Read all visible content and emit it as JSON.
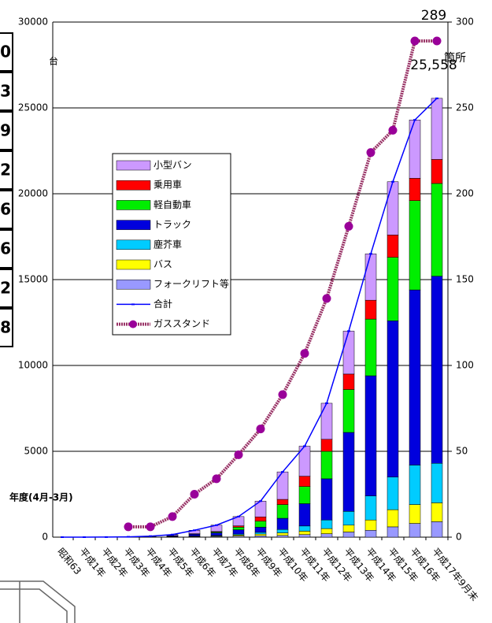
{
  "chart_data": {
    "type": "bar",
    "stacked": true,
    "y_label": "台",
    "y2_label": "箇所",
    "x_note": "年度(4月-3月)",
    "categories": [
      "昭和63",
      "平成1年",
      "平成2年",
      "平成3年",
      "平成4年",
      "平成5年",
      "平成6年",
      "平成7年",
      "平成8年",
      "平成9年",
      "平成10年",
      "平成11年",
      "平成12年",
      "平成13年",
      "平成14年",
      "平成15年",
      "平成16年",
      "平成17年9月末"
    ],
    "ylim": [
      0,
      30000
    ],
    "yticks": [
      0,
      5000,
      10000,
      15000,
      20000,
      25000,
      30000
    ],
    "y2lim": [
      0,
      300
    ],
    "y2ticks": [
      0,
      50,
      100,
      150,
      200,
      250,
      300
    ],
    "grid": true,
    "series": [
      {
        "name": "小型バン",
        "color": "#cc99ff",
        "values": [
          0,
          0,
          2,
          4,
          18,
          55,
          200,
          370,
          540,
          920,
          1600,
          1750,
          2100,
          2500,
          2700,
          3100,
          3400,
          3558
        ]
      },
      {
        "name": "乗用車",
        "color": "#ff0000",
        "values": [
          0,
          0,
          0,
          1,
          2,
          5,
          10,
          30,
          80,
          250,
          300,
          600,
          700,
          900,
          1100,
          1300,
          1300,
          1400
        ]
      },
      {
        "name": "軽自動車",
        "color": "#00ee00",
        "values": [
          0,
          0,
          0,
          1,
          5,
          10,
          20,
          50,
          150,
          350,
          800,
          1000,
          1600,
          2500,
          3300,
          3700,
          5200,
          5400
        ]
      },
      {
        "name": "トラック",
        "color": "#0000dd",
        "values": [
          0,
          0,
          1,
          5,
          15,
          40,
          100,
          150,
          250,
          300,
          650,
          1300,
          2400,
          4600,
          7000,
          9100,
          10200,
          10900
        ]
      },
      {
        "name": "塵芥車",
        "color": "#00ccff",
        "values": [
          0,
          0,
          0,
          2,
          5,
          10,
          20,
          30,
          60,
          100,
          200,
          300,
          500,
          800,
          1400,
          1900,
          2300,
          2300
        ]
      },
      {
        "name": "バス",
        "color": "#ffff00",
        "values": [
          0,
          0,
          0,
          2,
          5,
          10,
          20,
          30,
          60,
          100,
          150,
          200,
          300,
          400,
          600,
          1000,
          1100,
          1100
        ]
      },
      {
        "name": "フォークリフト等",
        "color": "#9999ff",
        "values": [
          0,
          0,
          2,
          5,
          10,
          20,
          30,
          40,
          60,
          80,
          100,
          150,
          200,
          300,
          400,
          600,
          800,
          900
        ]
      },
      {
        "name": "合計",
        "type": "line",
        "color": "#0000ff",
        "values": [
          0,
          0,
          5,
          20,
          60,
          150,
          400,
          700,
          1200,
          2100,
          3800,
          5300,
          7800,
          12000,
          16500,
          20700,
          24300,
          25558
        ],
        "value_labels": [
          null,
          null,
          null,
          null,
          null,
          null,
          null,
          null,
          null,
          null,
          null,
          null,
          null,
          null,
          null,
          null,
          null,
          "25,558"
        ]
      },
      {
        "name": "ガススタンド",
        "type": "line",
        "axis": "y2",
        "color": "#993366",
        "marker_color": "#990099",
        "values": [
          null,
          null,
          null,
          6,
          6,
          12,
          25,
          34,
          48,
          63,
          83,
          107,
          139,
          181,
          224,
          237,
          289,
          289
        ],
        "value_labels": [
          null,
          null,
          null,
          null,
          null,
          null,
          null,
          null,
          null,
          null,
          null,
          null,
          null,
          null,
          null,
          null,
          null,
          "289"
        ]
      }
    ]
  },
  "side_table": {
    "cells": [
      "0",
      "3",
      "9",
      "2",
      "6",
      "6",
      "2",
      "8"
    ]
  }
}
